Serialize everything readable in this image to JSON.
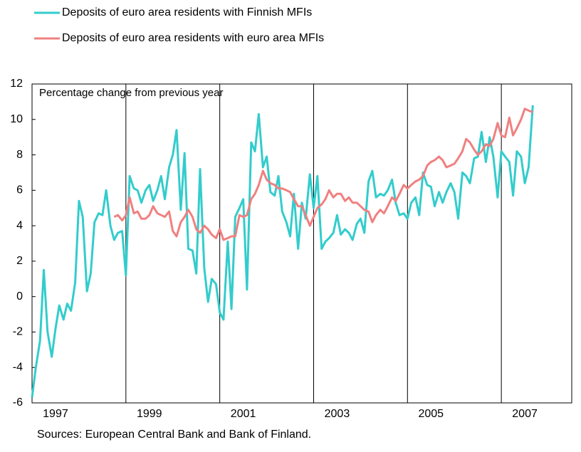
{
  "chart_data": {
    "type": "line",
    "y_label": "Percentage change from previous year",
    "source": "Sources: European Central Bank and  Bank of Finland.",
    "x": [
      1997.0,
      1997.08,
      1997.17,
      1997.25,
      1997.33,
      1997.42,
      1997.5,
      1997.58,
      1997.67,
      1997.75,
      1997.83,
      1997.92,
      1998.0,
      1998.08,
      1998.17,
      1998.25,
      1998.33,
      1998.42,
      1998.5,
      1998.58,
      1998.67,
      1998.75,
      1998.83,
      1998.92,
      1999.0,
      1999.08,
      1999.17,
      1999.25,
      1999.33,
      1999.42,
      1999.5,
      1999.58,
      1999.67,
      1999.75,
      1999.83,
      1999.92,
      2000.0,
      2000.08,
      2000.17,
      2000.25,
      2000.33,
      2000.42,
      2000.5,
      2000.58,
      2000.67,
      2000.75,
      2000.83,
      2000.92,
      2001.0,
      2001.08,
      2001.17,
      2001.25,
      2001.33,
      2001.42,
      2001.5,
      2001.58,
      2001.67,
      2001.75,
      2001.83,
      2001.92,
      2002.0,
      2002.08,
      2002.17,
      2002.25,
      2002.33,
      2002.42,
      2002.5,
      2002.58,
      2002.67,
      2002.75,
      2002.83,
      2002.92,
      2003.0,
      2003.08,
      2003.17,
      2003.25,
      2003.33,
      2003.42,
      2003.5,
      2003.58,
      2003.67,
      2003.75,
      2003.83,
      2003.92,
      2004.0,
      2004.08,
      2004.17,
      2004.25,
      2004.33,
      2004.42,
      2004.5,
      2004.58,
      2004.67,
      2004.75,
      2004.83,
      2004.92,
      2005.0,
      2005.08,
      2005.17,
      2005.25,
      2005.33,
      2005.42,
      2005.5,
      2005.58,
      2005.67,
      2005.75,
      2005.83,
      2005.92,
      2006.0,
      2006.08,
      2006.17,
      2006.25,
      2006.33,
      2006.42,
      2006.5,
      2006.58,
      2006.67,
      2006.75,
      2006.83,
      2006.92,
      2007.0,
      2007.08,
      2007.17,
      2007.25,
      2007.33,
      2007.42,
      2007.5,
      2007.58,
      2007.67
    ],
    "series": [
      {
        "name": "Deposits of euro area residents with Finnish MFIs",
        "color": "#33cccc",
        "values": [
          -5.7,
          -4,
          -2.5,
          1.5,
          -2,
          -3.4,
          -1.8,
          -0.5,
          -1.3,
          -0.4,
          -0.8,
          0.8,
          5.4,
          4.5,
          0.3,
          1.3,
          4.2,
          4.7,
          4.6,
          6.0,
          4.0,
          3.2,
          3.6,
          3.7,
          1.2,
          6.8,
          6.1,
          6.0,
          5.3,
          6.0,
          6.3,
          5.4,
          6.0,
          6.8,
          5.5,
          7.3,
          8.0,
          9.4,
          4.9,
          8.1,
          2.7,
          2.6,
          1.3,
          7.2,
          1.6,
          -0.3,
          1.0,
          0.7,
          -0.9,
          -1.3,
          3.1,
          -0.7,
          4.5,
          5.0,
          5.5,
          0.4,
          8.7,
          8.2,
          10.3,
          7.3,
          7.9,
          5.9,
          5.7,
          6.8,
          4.8,
          4.2,
          3.4,
          5.8,
          2.7,
          5.3,
          4.4,
          6.9,
          5.0,
          6.8,
          2.7,
          3.1,
          3.3,
          3.6,
          4.6,
          3.5,
          3.8,
          3.6,
          3.2,
          4.1,
          4.4,
          3.6,
          6.5,
          7.1,
          5.6,
          5.8,
          5.7,
          6.0,
          6.6,
          5.3,
          4.6,
          4.7,
          4.4,
          5.3,
          5.6,
          4.6,
          7.0,
          6.3,
          6.2,
          5.1,
          5.9,
          5.3,
          5.9,
          6.4,
          5.9,
          4.4,
          7.0,
          6.8,
          6.4,
          7.8,
          7.9,
          9.3,
          7.6,
          9.0,
          7.9,
          5.6,
          8.2,
          7.9,
          7.6,
          5.7,
          8.2,
          7.9,
          6.4,
          7.3,
          10.8
        ]
      },
      {
        "name": "Deposits of euro area residents with euro area MFIs",
        "color": "#f08080",
        "values": [
          null,
          null,
          null,
          null,
          null,
          null,
          null,
          null,
          null,
          null,
          null,
          null,
          null,
          null,
          null,
          null,
          null,
          null,
          null,
          null,
          null,
          4.5,
          4.6,
          4.3,
          4.6,
          5.6,
          4.7,
          4.8,
          4.4,
          4.4,
          4.6,
          5.1,
          4.7,
          4.6,
          4.5,
          4.8,
          3.7,
          3.4,
          4.2,
          4.5,
          4.9,
          4.5,
          3.8,
          3.6,
          4.0,
          3.8,
          3.5,
          3.3,
          3.8,
          3.2,
          3.3,
          3.4,
          3.4,
          4.6,
          4.5,
          4.6,
          5.5,
          5.8,
          6.3,
          7.1,
          6.6,
          6.4,
          6.3,
          6.1,
          6.1,
          6.0,
          5.9,
          5.5,
          5.1,
          5.1,
          4.6,
          4.0,
          4.5,
          5.0,
          5.2,
          5.5,
          6.0,
          5.6,
          5.8,
          5.8,
          5.4,
          5.6,
          5.3,
          5.3,
          5.1,
          4.9,
          4.8,
          4.2,
          4.6,
          4.9,
          4.7,
          5.1,
          5.6,
          5.4,
          5.8,
          6.3,
          6.1,
          6.3,
          6.5,
          6.6,
          6.8,
          7.4,
          7.6,
          7.7,
          7.9,
          7.7,
          7.3,
          7.4,
          7.5,
          7.8,
          8.2,
          8.9,
          8.7,
          8.3,
          8.0,
          8.2,
          8.6,
          8.5,
          8.9,
          9.8,
          9.1,
          9.0,
          10.1,
          9.1,
          9.5,
          10.0,
          10.6,
          10.5,
          10.4
        ]
      }
    ],
    "xlim": [
      1997,
      2008.5
    ],
    "xticks": [
      {
        "value": 1997.5,
        "label": "1997"
      },
      {
        "value": 1999.5,
        "label": "1999"
      },
      {
        "value": 2001.5,
        "label": "2001"
      },
      {
        "value": 2003.5,
        "label": "2003"
      },
      {
        "value": 2005.5,
        "label": "2005"
      },
      {
        "value": 2007.5,
        "label": "2007"
      }
    ],
    "xgrid": [
      1999,
      2001,
      2003,
      2005,
      2007
    ],
    "ylim": [
      -6,
      12
    ],
    "yticks": [
      -6,
      -4,
      -2,
      0,
      2,
      4,
      6,
      8,
      10,
      12
    ],
    "legend": "top-left"
  }
}
